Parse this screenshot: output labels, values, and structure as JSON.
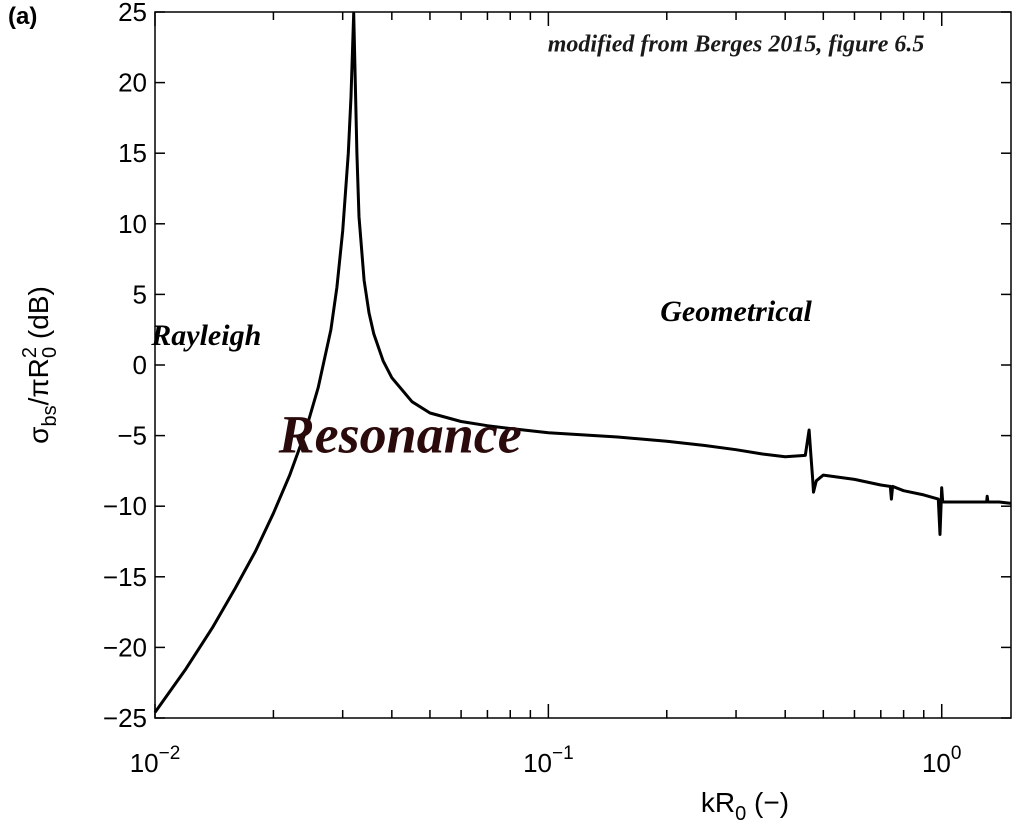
{
  "panel_label": "(a)",
  "chart_data": {
    "type": "line",
    "x_scale": "log",
    "xlim": [
      0.01,
      1.5
    ],
    "ylim": [
      -25,
      25
    ],
    "xlabel": {
      "main": "kR",
      "sub": "0",
      "suffix": " (−)"
    },
    "ylabel": {
      "sigma": "σ",
      "sigma_sub": "bs",
      "mid": "/πR",
      "sup": "2",
      "sub": "0",
      "suffix": " (dB)"
    },
    "x_ticks": [
      {
        "value": 0.01,
        "base": "10",
        "exp": "−2"
      },
      {
        "value": 0.1,
        "base": "10",
        "exp": "−1"
      },
      {
        "value": 1,
        "base": "10",
        "exp": "0"
      }
    ],
    "y_ticks": [
      {
        "value": 25,
        "label": "25"
      },
      {
        "value": 20,
        "label": "20"
      },
      {
        "value": 15,
        "label": "15"
      },
      {
        "value": 10,
        "label": "10"
      },
      {
        "value": 5,
        "label": "5"
      },
      {
        "value": 0,
        "label": "0"
      },
      {
        "value": -5,
        "label": "−5"
      },
      {
        "value": -10,
        "label": "−10"
      },
      {
        "value": -15,
        "label": "−15"
      },
      {
        "value": -20,
        "label": "−20"
      },
      {
        "value": -25,
        "label": "−25"
      }
    ],
    "series": [
      {
        "color": "#000000",
        "x": [
          0.01,
          0.012,
          0.014,
          0.016,
          0.018,
          0.02,
          0.022,
          0.024,
          0.026,
          0.028,
          0.029,
          0.03,
          0.031,
          0.0315,
          0.032,
          0.0323,
          0.0326,
          0.033,
          0.034,
          0.035,
          0.036,
          0.038,
          0.04,
          0.045,
          0.05,
          0.06,
          0.07,
          0.08,
          0.1,
          0.15,
          0.2,
          0.25,
          0.3,
          0.35,
          0.4,
          0.45,
          0.46,
          0.465,
          0.47,
          0.472,
          0.48,
          0.5,
          0.6,
          0.7,
          0.74,
          0.745,
          0.75,
          0.8,
          0.9,
          0.98,
          0.99,
          1.0,
          1.005,
          1.01,
          1.05,
          1.2,
          1.3,
          1.305,
          1.31,
          1.4,
          1.5
        ],
        "y": [
          -24.6,
          -21.5,
          -18.6,
          -15.8,
          -13.2,
          -10.5,
          -7.8,
          -4.9,
          -1.6,
          2.5,
          5.5,
          9.5,
          15.0,
          19.0,
          24.9,
          20.0,
          15.0,
          10.5,
          6.0,
          3.7,
          2.2,
          0.3,
          -0.9,
          -2.6,
          -3.4,
          -4.0,
          -4.3,
          -4.5,
          -4.8,
          -5.1,
          -5.4,
          -5.7,
          -6.0,
          -6.3,
          -6.5,
          -6.4,
          -4.6,
          -6.4,
          -8.1,
          -9.0,
          -8.2,
          -7.8,
          -8.1,
          -8.5,
          -8.6,
          -9.5,
          -8.6,
          -8.9,
          -9.2,
          -9.5,
          -12.0,
          -8.7,
          -9.6,
          -9.7,
          -9.7,
          -9.7,
          -9.7,
          -9.3,
          -9.7,
          -9.7,
          -9.8
        ]
      }
    ],
    "annotations": [
      {
        "text": "modified from Berges 2015, figure 6.5",
        "x": 0.3,
        "y": 22.2,
        "size": 24,
        "color": "#1a1a1a"
      },
      {
        "text": "Rayleigh",
        "x": 0.0135,
        "y": 1.4,
        "size": 30,
        "color": "#000000"
      },
      {
        "text": "Geometrical",
        "x": 0.3,
        "y": 3.1,
        "size": 30,
        "color": "#000000"
      },
      {
        "text": "Resonance",
        "x": 0.042,
        "y": -6.2,
        "size": 54,
        "color": "#2a0a0a"
      }
    ]
  }
}
